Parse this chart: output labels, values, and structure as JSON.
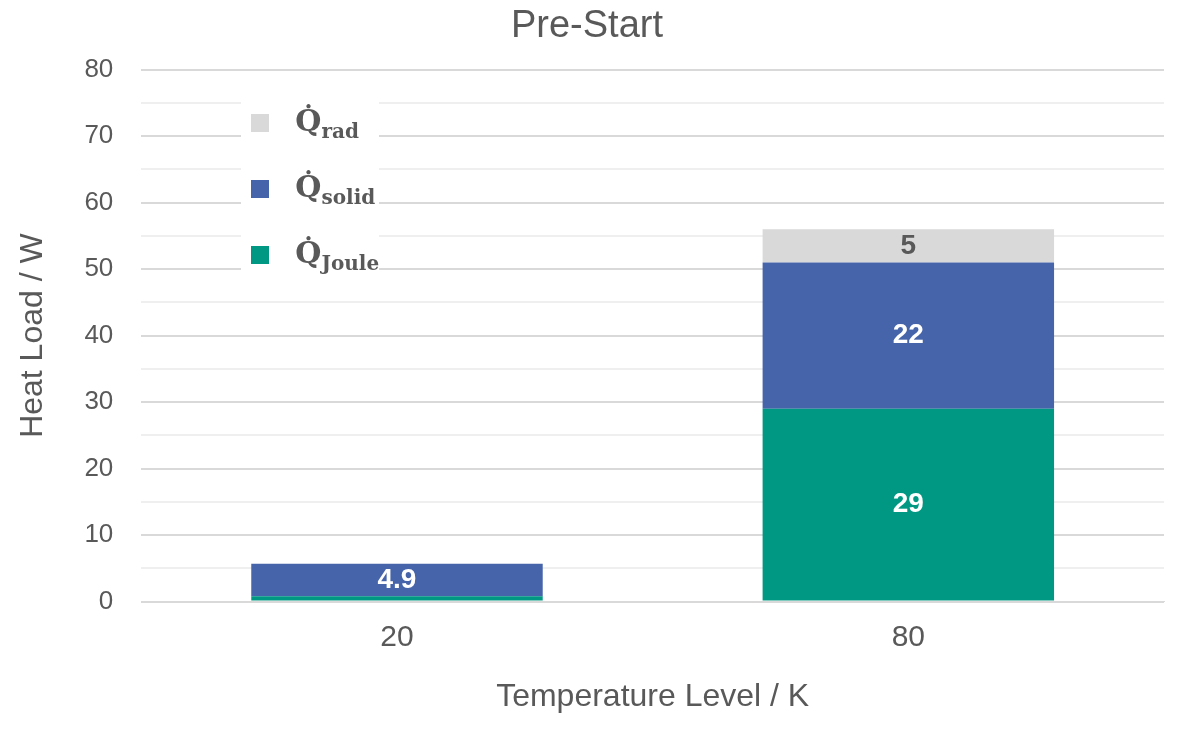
{
  "chart_data": {
    "type": "bar",
    "title": "Pre-Start",
    "xlabel": "Temperature Level / K",
    "ylabel": "Heat Load / W",
    "categories": [
      "20",
      "80"
    ],
    "stacked": true,
    "series": [
      {
        "name": "Q̇$_{Joule}$",
        "color": "#009882",
        "values": [
          0.8,
          29
        ],
        "value_labels": [
          null,
          "29"
        ]
      },
      {
        "name": "Q̇$_{solid}$",
        "color": "#4664aa",
        "values": [
          4.9,
          22
        ],
        "value_labels": [
          "4.9",
          "22"
        ]
      },
      {
        "name": "Q̇$_{rad}$",
        "color": "#d9d9d9",
        "values": [
          null,
          5
        ],
        "value_labels": [
          null,
          "5"
        ]
      }
    ],
    "ylim": [
      0,
      80
    ],
    "yticks": [
      0,
      {
        "value": 5,
        "label": null
      },
      10,
      {
        "value": 15,
        "label": null
      },
      20,
      {
        "value": 25,
        "label": null
      },
      30,
      {
        "value": 35,
        "label": null
      },
      40,
      {
        "value": 45,
        "label": null
      },
      50,
      {
        "value": 55,
        "label": null
      },
      60,
      {
        "value": 65,
        "label": null
      },
      70,
      {
        "value": 75,
        "label": null
      },
      80
    ],
    "grid": "y",
    "legend": "top left"
  }
}
